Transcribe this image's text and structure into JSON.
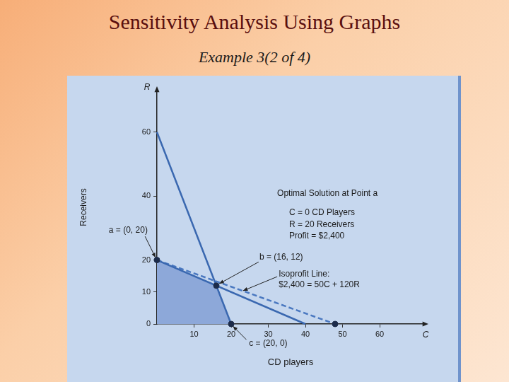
{
  "chart_data": {
    "type": "line",
    "title": "Sensitivity Analysis Using Graphs",
    "subtitle": "Example 3(2 of 4)",
    "xlabel": "CD players",
    "ylabel": "Receivers",
    "x_symbol": "C",
    "y_symbol": "R",
    "xlim": [
      0,
      72
    ],
    "ylim": [
      0,
      73
    ],
    "xticks": [
      10,
      20,
      30,
      40,
      50,
      60
    ],
    "yticks": [
      0,
      10,
      20,
      40,
      60
    ],
    "grid": false,
    "series": [
      {
        "type": "area",
        "color": "#8da8d9",
        "x": [
          0,
          16,
          20
        ],
        "y": [
          20,
          12,
          0
        ]
      },
      {
        "type": "line",
        "color": "#3a68b0",
        "line_style": "solid",
        "x": [
          0,
          20
        ],
        "y": [
          60,
          0
        ]
      },
      {
        "type": "line",
        "color": "#3a68b0",
        "line_style": "solid",
        "x": [
          0,
          40
        ],
        "y": [
          20,
          0
        ]
      },
      {
        "type": "line",
        "color": "#4a78c0",
        "line_style": "dashed",
        "x": [
          0,
          48
        ],
        "y": [
          20,
          0
        ]
      },
      {
        "type": "scatter",
        "color": "#1c2b4a",
        "marker": "circle",
        "x": [
          0,
          16,
          20,
          48
        ],
        "y": [
          20,
          12,
          0,
          0
        ]
      }
    ],
    "annotations": [
      {
        "lines": [
          "a = (0, 20)"
        ]
      },
      {
        "lines": [
          "b = (16, 12)"
        ]
      },
      {
        "lines": [
          "c = (20, 0)"
        ]
      },
      {
        "lines": [
          "Isoprofit Line:",
          "$2,400 = 50C + 120R"
        ]
      },
      {
        "lines": [
          "Optimal Solution at Point a",
          "C = 0 CD Players",
          "R = 20 Receivers",
          "Profit = $2,400"
        ]
      }
    ]
  }
}
